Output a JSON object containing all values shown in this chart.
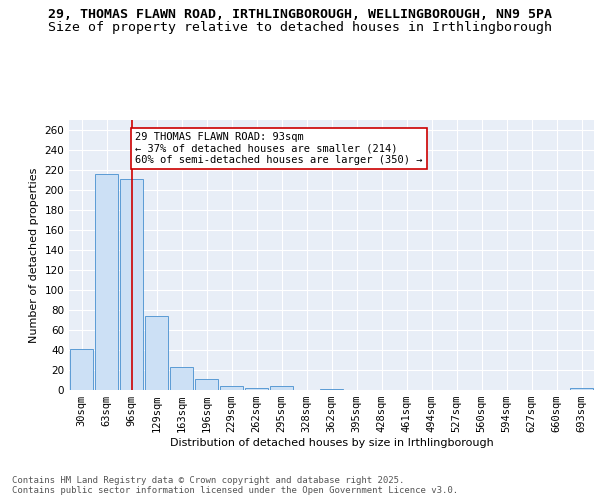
{
  "title_line1": "29, THOMAS FLAWN ROAD, IRTHLINGBOROUGH, WELLINGBOROUGH, NN9 5PA",
  "title_line2": "Size of property relative to detached houses in Irthlingborough",
  "xlabel": "Distribution of detached houses by size in Irthlingborough",
  "ylabel": "Number of detached properties",
  "categories": [
    "30sqm",
    "63sqm",
    "96sqm",
    "129sqm",
    "163sqm",
    "196sqm",
    "229sqm",
    "262sqm",
    "295sqm",
    "328sqm",
    "362sqm",
    "395sqm",
    "428sqm",
    "461sqm",
    "494sqm",
    "527sqm",
    "560sqm",
    "594sqm",
    "627sqm",
    "660sqm",
    "693sqm"
  ],
  "values": [
    41,
    216,
    211,
    74,
    23,
    11,
    4,
    2,
    4,
    0,
    1,
    0,
    0,
    0,
    0,
    0,
    0,
    0,
    0,
    0,
    2
  ],
  "bar_color": "#cce0f5",
  "bar_edge_color": "#5b9bd5",
  "vline_x": 2.0,
  "vline_color": "#cc0000",
  "annotation_text": "29 THOMAS FLAWN ROAD: 93sqm\n← 37% of detached houses are smaller (214)\n60% of semi-detached houses are larger (350) →",
  "annotation_box_color": "#ffffff",
  "annotation_box_edge": "#cc0000",
  "ylim": [
    0,
    270
  ],
  "yticks": [
    0,
    20,
    40,
    60,
    80,
    100,
    120,
    140,
    160,
    180,
    200,
    220,
    240,
    260
  ],
  "bg_color": "#e8eef7",
  "grid_color": "#ffffff",
  "footer": "Contains HM Land Registry data © Crown copyright and database right 2025.\nContains public sector information licensed under the Open Government Licence v3.0.",
  "title_fontsize": 9.5,
  "subtitle_fontsize": 9.5,
  "axis_label_fontsize": 8,
  "tick_fontsize": 7.5,
  "annotation_fontsize": 7.5,
  "footer_fontsize": 6.5
}
